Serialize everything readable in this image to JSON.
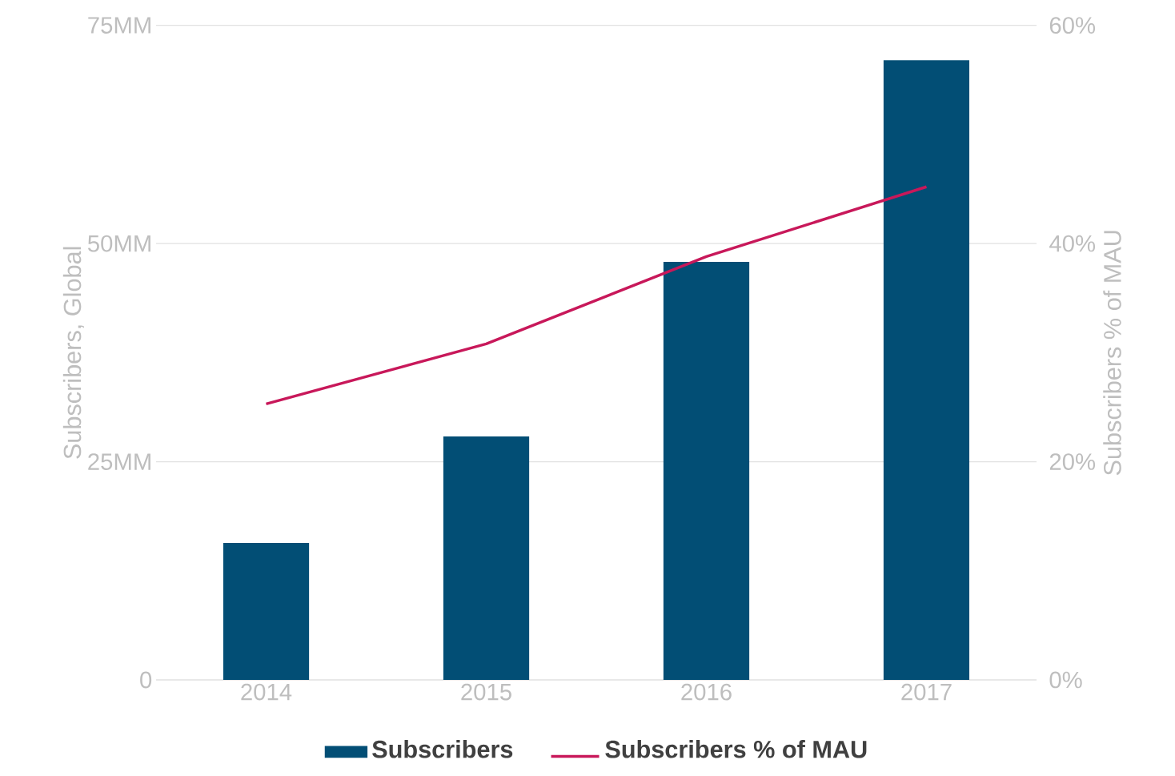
{
  "chart_data": {
    "type": "bar",
    "categories": [
      "2014",
      "2015",
      "2016",
      "2017"
    ],
    "series": [
      {
        "name": "Subscribers",
        "color": "#024e75",
        "values": [
          15.7,
          27.9,
          47.9,
          71.0
        ]
      },
      {
        "name": "Subscribers % of MAU",
        "type": "line",
        "axis": "y2",
        "color": "#c8185a",
        "values": [
          25.3,
          30.8,
          38.8,
          45.2
        ]
      }
    ],
    "ylabel": "Subscribers, Global",
    "y2label": "Subscribers % of MAU",
    "ylim": [
      0,
      75
    ],
    "yticks": [
      0,
      {
        "value": 25,
        "label": "25MM"
      },
      {
        "value": 50,
        "label": "50MM"
      },
      {
        "value": 75,
        "label": "75MM"
      }
    ],
    "y2lim": [
      0,
      60
    ],
    "y2ticks": [
      {
        "value": 0,
        "label": "0%"
      },
      {
        "value": 20,
        "label": "20%"
      },
      {
        "value": 40,
        "label": "40%"
      },
      {
        "value": 60,
        "label": "60%"
      }
    ],
    "grid": "y",
    "legend": "bottom",
    "marker": "none"
  }
}
